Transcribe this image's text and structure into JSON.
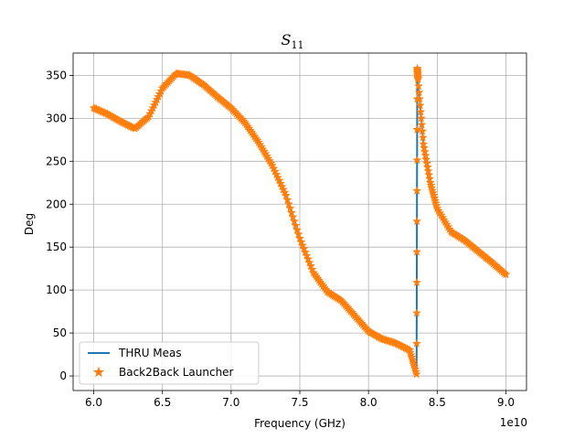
{
  "chart_data": {
    "type": "line",
    "title": "S",
    "title_subscript": "11",
    "xlabel": "Frequency (GHz)",
    "ylabel": "Deg",
    "x_offset_label": "1e10",
    "xlim": [
      5.85,
      9.15
    ],
    "ylim": [
      -17,
      376
    ],
    "xticks": [
      6.0,
      6.5,
      7.0,
      7.5,
      8.0,
      8.5,
      9.0
    ],
    "xtick_labels": [
      "6.0",
      "6.5",
      "7.0",
      "7.5",
      "8.0",
      "8.5",
      "9.0"
    ],
    "yticks": [
      0,
      50,
      100,
      150,
      200,
      250,
      300,
      350
    ],
    "ytick_labels": [
      "0",
      "50",
      "100",
      "150",
      "200",
      "250",
      "300",
      "350"
    ],
    "grid": true,
    "legend_position": "lower-left",
    "series": [
      {
        "name": "THRU Meas",
        "color": "#1f77b4",
        "style": "line",
        "x": [
          6.0,
          6.1,
          6.2,
          6.3,
          6.4,
          6.5,
          6.6,
          6.7,
          6.8,
          6.9,
          7.0,
          7.1,
          7.2,
          7.3,
          7.4,
          7.5,
          7.6,
          7.7,
          7.8,
          7.9,
          8.0,
          8.1,
          8.2,
          8.3,
          8.35,
          8.355,
          8.36,
          8.4,
          8.45,
          8.5,
          8.6,
          8.7,
          8.8,
          8.9,
          9.0
        ],
        "y": [
          312,
          305,
          296,
          288,
          302,
          335,
          352,
          350,
          339,
          325,
          312,
          295,
          272,
          245,
          210,
          160,
          120,
          98,
          88,
          70,
          52,
          43,
          38,
          30,
          10,
          350,
          345,
          270,
          225,
          195,
          168,
          158,
          145,
          132,
          118
        ]
      },
      {
        "name": "Back2Back Launcher",
        "color": "#ff7f0e",
        "style": "star-markers",
        "x": [
          6.0,
          6.1,
          6.2,
          6.3,
          6.4,
          6.5,
          6.6,
          6.7,
          6.8,
          6.9,
          7.0,
          7.1,
          7.2,
          7.3,
          7.4,
          7.5,
          7.6,
          7.7,
          7.8,
          7.9,
          8.0,
          8.1,
          8.2,
          8.3,
          8.35,
          8.355,
          8.36,
          8.4,
          8.45,
          8.5,
          8.6,
          8.7,
          8.8,
          8.9,
          9.0
        ],
        "y": [
          312,
          305,
          296,
          288,
          302,
          335,
          352,
          350,
          339,
          325,
          312,
          295,
          272,
          245,
          210,
          160,
          120,
          98,
          88,
          70,
          52,
          43,
          38,
          30,
          2,
          358,
          345,
          270,
          225,
          195,
          168,
          158,
          145,
          132,
          118
        ]
      }
    ]
  }
}
